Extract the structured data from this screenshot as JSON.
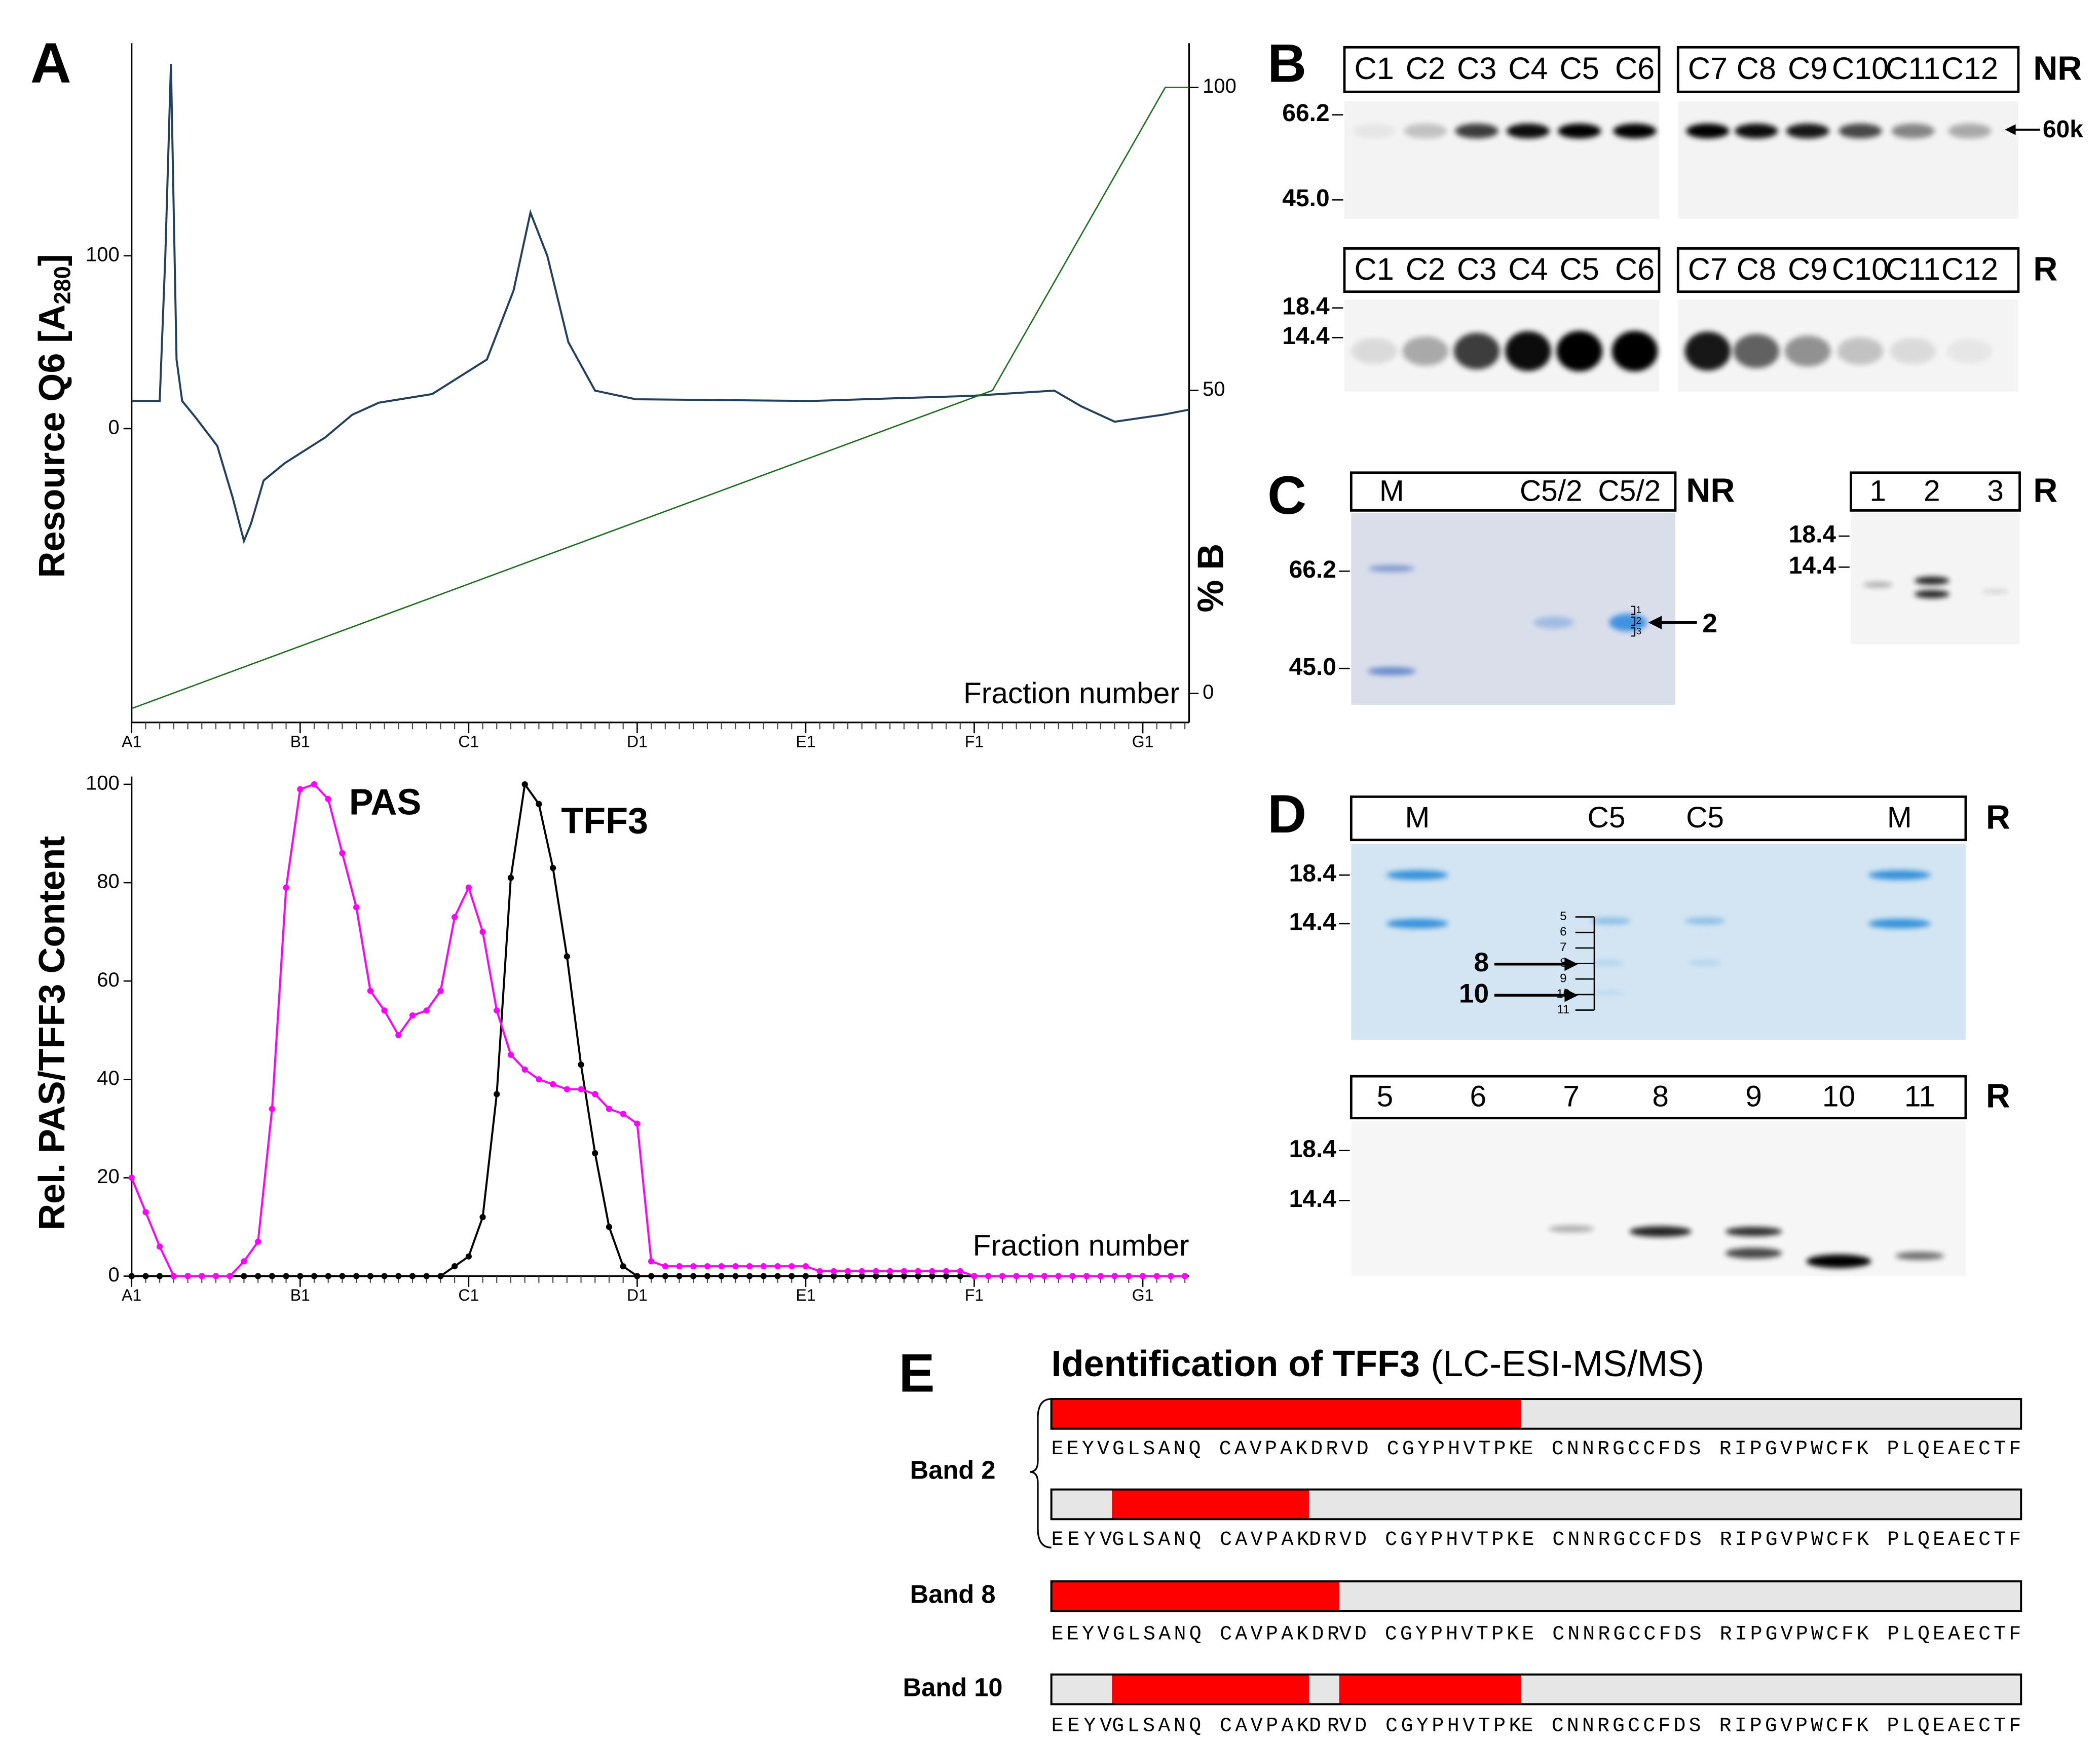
{
  "panel_labels": {
    "A": "A",
    "B": "B",
    "C": "C",
    "D": "D",
    "E": "E"
  },
  "chart_data": [
    {
      "type": "line",
      "ylabel": [
        "Resource Q6 [A",
        "280",
        "]"
      ],
      "y2label": "% B",
      "xlabel": "Fraction number",
      "xlim": [
        0,
        75.3
      ],
      "xticks": [
        {
          "value": 0,
          "label": "A1"
        },
        {
          "value": 12,
          "label": "B1"
        },
        {
          "value": 24,
          "label": "C1"
        },
        {
          "value": 36,
          "label": "D1"
        },
        {
          "value": 48,
          "label": "E1"
        },
        {
          "value": 60,
          "label": "F1"
        },
        {
          "value": 72,
          "label": "G1"
        }
      ],
      "ylim": [
        -170,
        223
      ],
      "yticks": [
        0,
        100
      ],
      "y2lim": [
        -4.8,
        107.3
      ],
      "y2ticks": [
        0,
        50,
        100
      ],
      "series": [
        {
          "color": "#22405e",
          "x": [
            0,
            2.0,
            2.4,
            2.8,
            3.2,
            3.6,
            4.6,
            6.1,
            7.2,
            8.0,
            8.5,
            9.4,
            10.9,
            13.8,
            15.7,
            17.6,
            21.4,
            25.3,
            27.2,
            28.4,
            29.6,
            31.1,
            33.0,
            35.9,
            48.4,
            59.9,
            65.7,
            67.6,
            70.0,
            73.4,
            75.3
          ],
          "values": [
            16,
            16,
            100,
            211,
            40,
            16,
            6,
            -10,
            -40,
            -65,
            -55,
            -30,
            -20,
            -5,
            8,
            15,
            20,
            40,
            80,
            125,
            100,
            50,
            22,
            17,
            16,
            19,
            22,
            13,
            4,
            8,
            11
          ]
        },
        {
          "color": "#1a6e1a",
          "axis": "y2",
          "x": [
            0,
            61.3,
            73.6,
            75.3
          ],
          "values": [
            -2.5,
            50,
            100,
            100
          ]
        }
      ]
    },
    {
      "type": "line",
      "markers": true,
      "ylabel": "Rel. PAS/TFF3 Content",
      "xlabel": "Fraction number",
      "xlim": [
        0,
        75.3
      ],
      "xticks": [
        {
          "value": 0,
          "label": "A1"
        },
        {
          "value": 12,
          "label": "B1"
        },
        {
          "value": 24,
          "label": "C1"
        },
        {
          "value": 36,
          "label": "D1"
        },
        {
          "value": 48,
          "label": "E1"
        },
        {
          "value": 60,
          "label": "F1"
        },
        {
          "value": 72,
          "label": "G1"
        }
      ],
      "ylim": [
        0,
        101.6
      ],
      "yticks": [
        0,
        20,
        40,
        60,
        80,
        100
      ],
      "x": [
        0,
        1,
        2,
        3,
        4,
        5,
        6,
        7,
        8,
        9,
        10,
        11,
        12,
        13,
        14,
        15,
        16,
        17,
        18,
        19,
        20,
        21,
        22,
        23,
        24,
        25,
        26,
        27,
        28,
        29,
        30,
        31,
        32,
        33,
        34,
        35,
        36,
        37,
        38,
        39,
        40,
        41,
        42,
        43,
        44,
        45,
        46,
        47,
        48,
        49,
        50,
        51,
        52,
        53,
        54,
        55,
        56,
        57,
        58,
        59,
        60,
        61,
        62,
        63,
        64,
        65,
        66,
        67,
        68,
        69,
        70,
        71,
        72,
        73,
        74,
        75
      ],
      "series": [
        {
          "name": "TFF3",
          "color": "#000000",
          "values": [
            0,
            0,
            0,
            0,
            0,
            0,
            0,
            0,
            0,
            0,
            0,
            0,
            0,
            0,
            0,
            0,
            0,
            0,
            0,
            0,
            0,
            0,
            0,
            2,
            4,
            12,
            37,
            81,
            100,
            96,
            83,
            65,
            43,
            25,
            10,
            2,
            0,
            0,
            0,
            0,
            0,
            0,
            0,
            0,
            0,
            0,
            0,
            0,
            0,
            0,
            0,
            0,
            0,
            0,
            0,
            0,
            0,
            0,
            0,
            0,
            0,
            0,
            0,
            0,
            0,
            0,
            0,
            0,
            0,
            0,
            0,
            0,
            0,
            0,
            0,
            0
          ]
        },
        {
          "name": "PAS",
          "color": "#ff00ff",
          "values": [
            20,
            13,
            6,
            0,
            0,
            0,
            0,
            0,
            3,
            7,
            34,
            79,
            99,
            100,
            97,
            86,
            75,
            58,
            54,
            49,
            53,
            54,
            58,
            73,
            79,
            70,
            54,
            45,
            42,
            40,
            39,
            38,
            38,
            37,
            34,
            33,
            31,
            3,
            2,
            2,
            2,
            2,
            2,
            2,
            2,
            2,
            2,
            2,
            2,
            1,
            1,
            1,
            1,
            1,
            1,
            1,
            1,
            1,
            1,
            1,
            0,
            0,
            0,
            0,
            0,
            0,
            0,
            0,
            0,
            0,
            0,
            0,
            0,
            0,
            0,
            0
          ]
        }
      ]
    }
  ],
  "panel_b": {
    "nr": {
      "lanes": [
        [
          "C1",
          "C2",
          "C3",
          "C4",
          "C5",
          "C6"
        ],
        [
          "C7",
          "C8",
          "C9",
          "C10",
          "C11",
          "C12"
        ]
      ],
      "tag": "NR",
      "markers": [
        "66.2",
        "45.0"
      ],
      "band": "60k"
    },
    "r": {
      "lanes": [
        [
          "C1",
          "C2",
          "C3",
          "C4",
          "C5",
          "C6"
        ],
        [
          "C7",
          "C8",
          "C9",
          "C10",
          "C11",
          "C12"
        ]
      ],
      "tag": "R",
      "markers": [
        "18.4",
        "14.4"
      ]
    }
  },
  "panel_c": {
    "left": {
      "lanes": [
        [
          "M",
          "C5/2",
          "C5/2"
        ]
      ],
      "tag": "NR",
      "markers": [
        "66.2",
        "45.0"
      ],
      "ladder": [
        "1",
        "2",
        "3"
      ],
      "arrow": "2"
    },
    "right": {
      "lanes": [
        [
          "1",
          "2",
          "3"
        ]
      ],
      "tag": "R",
      "markers": [
        "18.4",
        "14.4"
      ]
    }
  },
  "panel_d": {
    "top": {
      "lanes": [
        [
          "M",
          "C5",
          "C5",
          "M"
        ]
      ],
      "tag": "R",
      "markers": [
        "18.4",
        "14.4"
      ],
      "ladder": [
        "5",
        "6",
        "7",
        "8",
        "9",
        "10",
        "11"
      ],
      "arrows": [
        "8",
        "10"
      ]
    },
    "bottom": {
      "lanes": [
        [
          "5",
          "6",
          "7",
          "8",
          "9",
          "10",
          "11"
        ]
      ],
      "tag": "R",
      "markers": [
        "18.4",
        "14.4"
      ]
    }
  },
  "panel_e": {
    "title": "Identification of TFF3",
    "subtitle": "(LC-ESI-MS/MS)",
    "bands": [
      {
        "label": "Band 2",
        "rows": [
          [
            {
              "text": "EEYVGLSANQ CAVPAKDRVD CGYPHVTPK",
              "covered": true
            },
            {
              "text": "E CNNRGCCFDS RIPGVPWCFK PLQEAECTF",
              "covered": false
            }
          ],
          [
            {
              "text": "EEYV",
              "covered": false
            },
            {
              "text": "GLSANQ CAVPAK",
              "covered": true
            },
            {
              "text": "DRVD CGYPHVTPKE CNNRGCCFDS RIPGVPWCFK PLQEAECTF",
              "covered": false
            }
          ]
        ]
      },
      {
        "label": "Band 8",
        "rows": [
          [
            {
              "text": "EEYVGLSANQ CAVPAKDR",
              "covered": true
            },
            {
              "text": "VD CGYPHVTPKE CNNRGCCFDS RIPGVPWCFK PLQEAECTF",
              "covered": false
            }
          ]
        ]
      },
      {
        "label": "Band 10",
        "rows": [
          [
            {
              "text": "EEYV",
              "covered": false
            },
            {
              "text": "GLSANQ CAVPAK",
              "covered": true
            },
            {
              "text": "DR",
              "covered": false
            },
            {
              "text": "VD CGYPHVTPK",
              "covered": true
            },
            {
              "text": "E CNNRGCCFDS RIPGVPWCFK PLQEAECTF",
              "covered": false
            }
          ]
        ]
      }
    ]
  }
}
